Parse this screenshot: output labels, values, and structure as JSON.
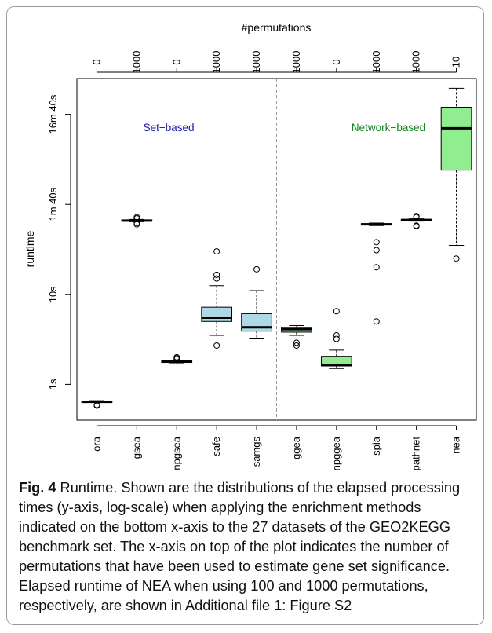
{
  "chart_data": {
    "type": "box",
    "title": "",
    "top_axis_title": "#permutations",
    "ylabel": "runtime",
    "y_scale": "log",
    "y_unit": "seconds",
    "ylim": [
      0.4,
      2500
    ],
    "y_ticks": [
      {
        "value": 1,
        "label": "1s"
      },
      {
        "value": 10,
        "label": "10s"
      },
      {
        "value": 100,
        "label": "1m 40s"
      },
      {
        "value": 1000,
        "label": "16m 40s"
      }
    ],
    "divider_after_index": 4,
    "groups": [
      {
        "label": "Set−based",
        "color": "#1a1aa0"
      },
      {
        "label": "Network−based",
        "color": "#12851f"
      }
    ],
    "methods": [
      {
        "name": "ora",
        "permutations": "0",
        "fill": "#3a4f8f",
        "whisker_low": 0.63,
        "q1": 0.63,
        "median": 0.64,
        "q3": 0.65,
        "whisker_high": 0.66,
        "outliers": [
          0.58,
          0.59
        ]
      },
      {
        "name": "gsea",
        "permutations": "1000",
        "fill": "#3a4f8f",
        "whisker_low": 64,
        "q1": 65,
        "median": 66,
        "q3": 67,
        "whisker_high": 68,
        "outliers": [
          60,
          62,
          70,
          72
        ]
      },
      {
        "name": "npgsea",
        "permutations": "0",
        "fill": "#3a4f8f",
        "whisker_low": 1.7,
        "q1": 1.75,
        "median": 1.8,
        "q3": 1.82,
        "whisker_high": 1.85,
        "outliers": [
          1.9,
          1.95,
          2.0
        ]
      },
      {
        "name": "safe",
        "permutations": "1000",
        "fill": "#add8e6",
        "whisker_low": 3.5,
        "q1": 5.0,
        "median": 5.5,
        "q3": 7.2,
        "whisker_high": 12.5,
        "outliers": [
          2.7,
          15,
          16.5,
          30
        ]
      },
      {
        "name": "samgs",
        "permutations": "1000",
        "fill": "#add8e6",
        "whisker_low": 3.2,
        "q1": 3.9,
        "median": 4.3,
        "q3": 6.1,
        "whisker_high": 11,
        "outliers": [
          19
        ]
      },
      {
        "name": "ggea",
        "permutations": "1000",
        "fill": "#90ee90",
        "whisker_low": 3.5,
        "q1": 3.8,
        "median": 4.1,
        "q3": 4.3,
        "whisker_high": 4.5,
        "outliers": [
          2.7,
          2.9
        ]
      },
      {
        "name": "npggea",
        "permutations": "0",
        "fill": "#90ee90",
        "whisker_low": 1.5,
        "q1": 1.6,
        "median": 1.65,
        "q3": 2.05,
        "whisker_high": 2.4,
        "outliers": [
          3.2,
          3.5,
          6.5
        ]
      },
      {
        "name": "spia",
        "permutations": "1000",
        "fill": "#90ee90",
        "whisker_low": 58,
        "q1": 59,
        "median": 60,
        "q3": 61,
        "whisker_high": 62,
        "outliers": [
          5,
          20,
          31,
          38
        ]
      },
      {
        "name": "pathnet",
        "permutations": "1000",
        "fill": "#90ee90",
        "whisker_low": 65,
        "q1": 66,
        "median": 67,
        "q3": 68,
        "whisker_high": 69,
        "outliers": [
          57,
          58,
          72,
          74
        ]
      },
      {
        "name": "nea",
        "permutations": "10",
        "fill": "#90ee90",
        "whisker_low": 35,
        "q1": 240,
        "median": 700,
        "q3": 1200,
        "whisker_high": 1950,
        "outliers": [
          25
        ]
      }
    ]
  },
  "caption": {
    "label": "Fig. 4",
    "text": " Runtime. Shown are the distributions of the elapsed processing times (y-axis, log-scale) when applying the enrichment methods indicated on the bottom x-axis to the 27 datasets of the GEO2KEGG benchmark set. The x-axis on top of the plot indicates the number of permutations that have been used to estimate gene set significance. Elapsed runtime of NEA when using 100 and 1000 permutations, respectively, are shown in Additional file 1: Figure S2"
  }
}
